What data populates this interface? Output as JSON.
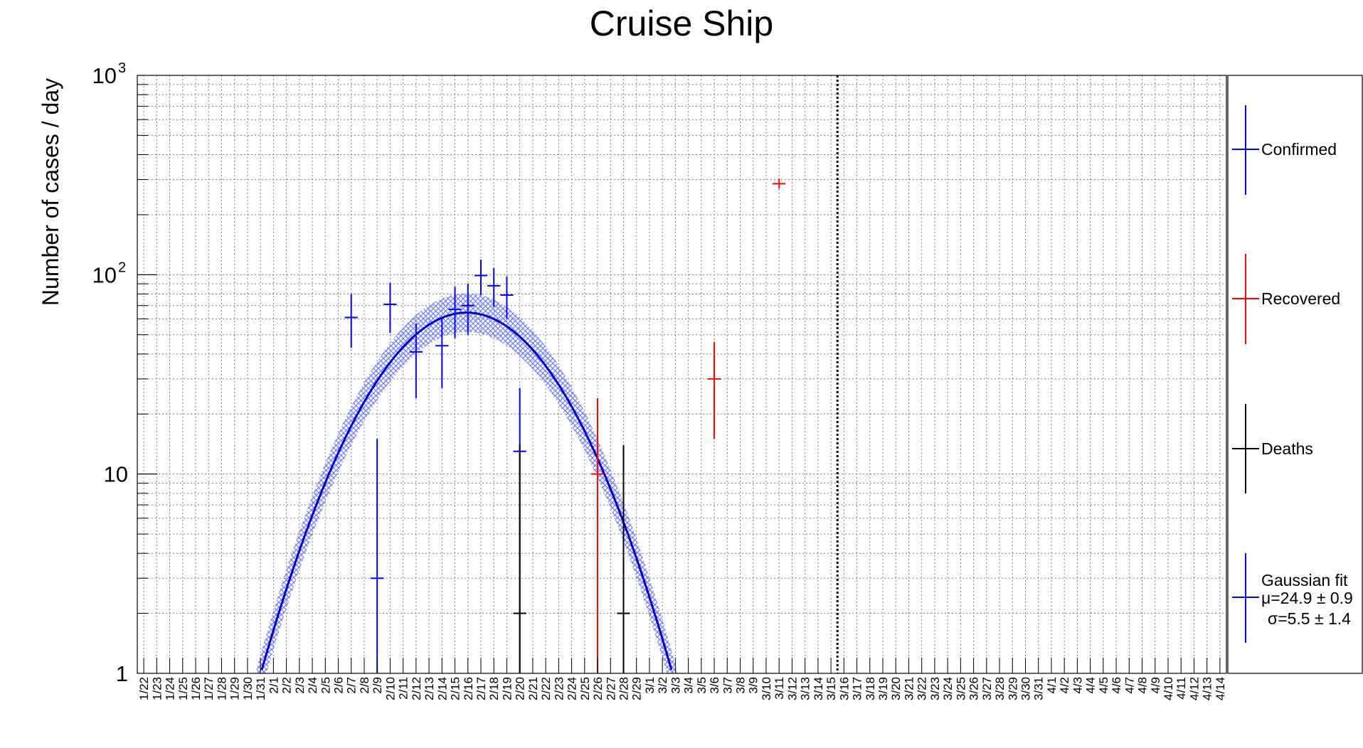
{
  "chart_data": {
    "type": "scatter",
    "title": "Cruise Ship",
    "xlabel": "",
    "ylabel": "Number of cases / day",
    "yscale": "log",
    "ylim": [
      1,
      1000
    ],
    "grid": true,
    "legend_position": "right",
    "yticks": [
      {
        "value": 1,
        "label": "1",
        "exp": ""
      },
      {
        "value": 10,
        "label": "10",
        "exp": ""
      },
      {
        "value": 100,
        "label": "10",
        "exp": "2"
      },
      {
        "value": 1000,
        "label": "10",
        "exp": "3"
      }
    ],
    "categories": [
      "1/22",
      "1/23",
      "1/24",
      "1/25",
      "1/26",
      "1/27",
      "1/28",
      "1/29",
      "1/30",
      "1/31",
      "2/1",
      "2/2",
      "2/3",
      "2/4",
      "2/5",
      "2/6",
      "2/7",
      "2/8",
      "2/9",
      "2/10",
      "2/11",
      "2/12",
      "2/13",
      "2/14",
      "2/15",
      "2/16",
      "2/17",
      "2/18",
      "2/19",
      "2/20",
      "2/21",
      "2/22",
      "2/23",
      "2/24",
      "2/25",
      "2/26",
      "2/27",
      "2/28",
      "2/29",
      "3/1",
      "3/2",
      "3/3",
      "3/4",
      "3/5",
      "3/6",
      "3/7",
      "3/8",
      "3/9",
      "3/10",
      "3/11",
      "3/12",
      "3/13",
      "3/14",
      "3/15",
      "3/16",
      "3/17",
      "3/18",
      "3/19",
      "3/20",
      "3/21",
      "3/22",
      "3/23",
      "3/24",
      "3/25",
      "3/26",
      "3/27",
      "3/28",
      "3/29",
      "3/30",
      "3/31",
      "4/1",
      "4/2",
      "4/3",
      "4/4",
      "4/5",
      "4/6",
      "4/7",
      "4/8",
      "4/9",
      "4/10",
      "4/11",
      "4/12",
      "4/13",
      "4/14"
    ],
    "vertical_marker": {
      "x": "3/16",
      "style": "dotted"
    },
    "series": [
      {
        "name": "Confirmed",
        "color": "#0000ff",
        "points": [
          {
            "x": "2/7",
            "y": 61,
            "ylow": 43,
            "yhigh": 80
          },
          {
            "x": "2/9",
            "y": 3,
            "ylow": 1,
            "yhigh": 15
          },
          {
            "x": "2/10",
            "y": 71,
            "ylow": 51,
            "yhigh": 91
          },
          {
            "x": "2/12",
            "y": 41,
            "ylow": 24,
            "yhigh": 57
          },
          {
            "x": "2/14",
            "y": 44,
            "ylow": 27,
            "yhigh": 60
          },
          {
            "x": "2/15",
            "y": 67,
            "ylow": 48,
            "yhigh": 87
          },
          {
            "x": "2/16",
            "y": 70,
            "ylow": 50,
            "yhigh": 90
          },
          {
            "x": "2/17",
            "y": 99,
            "ylow": 79,
            "yhigh": 119
          },
          {
            "x": "2/18",
            "y": 88,
            "ylow": 69,
            "yhigh": 108
          },
          {
            "x": "2/19",
            "y": 79,
            "ylow": 60,
            "yhigh": 98
          },
          {
            "x": "2/20",
            "y": 13,
            "ylow": 1,
            "yhigh": 27
          }
        ]
      },
      {
        "name": "Recovered",
        "color": "#ff0000",
        "points": [
          {
            "x": "2/26",
            "y": 10,
            "ylow": 1,
            "yhigh": 24
          },
          {
            "x": "3/6",
            "y": 30,
            "ylow": 15,
            "yhigh": 46
          },
          {
            "x": "3/11",
            "y": 286,
            "ylow": 270,
            "yhigh": 303
          }
        ]
      },
      {
        "name": "Deaths",
        "color": "#000000",
        "points": [
          {
            "x": "2/20",
            "y": 2,
            "ylow": 1,
            "yhigh": 14
          },
          {
            "x": "2/28",
            "y": 2,
            "ylow": 1,
            "yhigh": 14
          }
        ]
      }
    ],
    "fit": {
      "name": "Gaussian fit",
      "color": "#0000c8",
      "band_color": "#6e7cff",
      "mean_label": "μ=24.9 ± 0.9",
      "sigma_label": "σ=5.5 ± 1.4",
      "mean": 24.9,
      "sigma": 5.5,
      "amplitude": 64.5,
      "band_factor": 1.25
    },
    "legend": [
      {
        "label": "Confirmed",
        "color": "#0000ff"
      },
      {
        "label": "Recovered",
        "color": "#ff0000"
      },
      {
        "label": "Deaths",
        "color": "#000000"
      },
      {
        "label": "Gaussian fit",
        "color": "#0000ff",
        "extra": [
          "μ=24.9 ± 0.9",
          "σ=5.5 ± 1.4"
        ]
      }
    ]
  }
}
